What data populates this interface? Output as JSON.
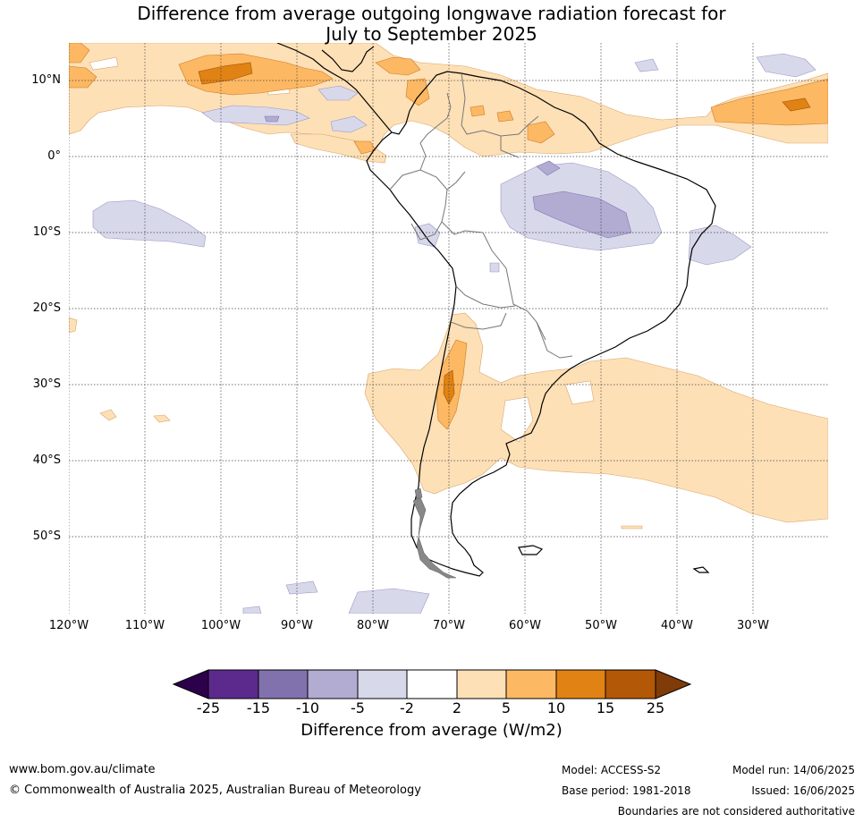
{
  "title": {
    "line1": "Difference from average outgoing longwave radiation forecast for",
    "line2": "July to September 2025"
  },
  "lat_labels": [
    "10°N",
    "0°",
    "10°S",
    "20°S",
    "30°S",
    "40°S",
    "50°S"
  ],
  "lon_labels": [
    "120°W",
    "110°W",
    "100°W",
    "90°W",
    "80°W",
    "70°W",
    "60°W",
    "50°W",
    "40°W",
    "30°W"
  ],
  "colorbar": {
    "ticks": [
      "-25",
      "-15",
      "-10",
      "-5",
      "-2",
      "2",
      "5",
      "10",
      "15",
      "25"
    ],
    "colors": [
      "#2d004b",
      "#5b2a8c",
      "#8172ae",
      "#b2abd2",
      "#d8d8eb",
      "#ffffff",
      "#fee0b6",
      "#fdb863",
      "#e08214",
      "#b35806",
      "#7f3b08"
    ],
    "label": "Difference from average (W/m2)"
  },
  "footer": {
    "website": "www.bom.gov.au/climate",
    "copyright": "© Commonwealth of Australia 2025, Australian Bureau of Meteorology",
    "model": "Model: ACCESS-S2",
    "base_period": "Base period: 1981-2018",
    "model_run": "Model run: 14/06/2025",
    "issued": "Issued: 16/06/2025",
    "disclaimer": "Boundaries are not considered authoritative"
  }
}
